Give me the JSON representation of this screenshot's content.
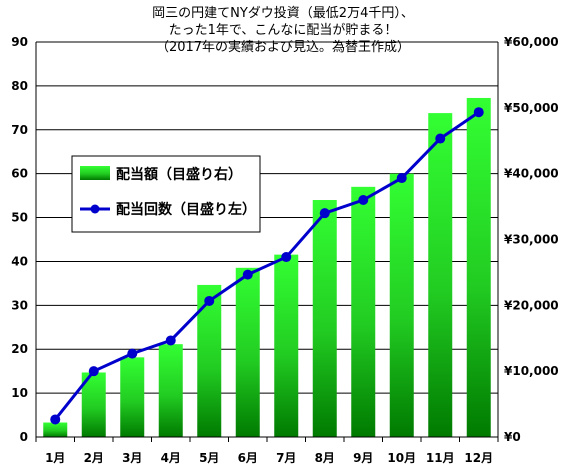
{
  "chart_data": {
    "type": "bar",
    "title_lines": [
      "岡三の円建てNYダウ投資（最低2万4千円）、",
      "たった1年で、こんなに配当が貯まる！",
      "（2017年の実績および見込。為替王作成）"
    ],
    "categories": [
      "1月",
      "2月",
      "3月",
      "4月",
      "5月",
      "6月",
      "7月",
      "8月",
      "9月",
      "10月",
      "11月",
      "12月"
    ],
    "series": [
      {
        "name": "配当額（目盛り右）",
        "kind": "bar",
        "axis": "right",
        "color": "#22dd22",
        "values": [
          2200,
          9800,
          12100,
          14100,
          23100,
          25700,
          27700,
          36000,
          38000,
          40000,
          49200,
          51500
        ]
      },
      {
        "name": "配当回数（目盛り左）",
        "kind": "line",
        "axis": "left",
        "color": "#0000cc",
        "values": [
          4,
          15,
          19,
          22,
          31,
          37,
          41,
          51,
          54,
          59,
          68,
          74
        ]
      }
    ],
    "left_axis": {
      "min": 0,
      "max": 90,
      "step": 10
    },
    "right_axis": {
      "min": 0,
      "max": 60000,
      "step": 10000,
      "labels": [
        "¥0",
        "¥10,000",
        "¥20,000",
        "¥30,000",
        "¥40,000",
        "¥50,000",
        "¥60,000"
      ]
    },
    "left_tick_labels": [
      "0",
      "10",
      "20",
      "30",
      "40",
      "50",
      "60",
      "70",
      "80",
      "90"
    ],
    "grid": true,
    "legend_position": "left-middle"
  }
}
